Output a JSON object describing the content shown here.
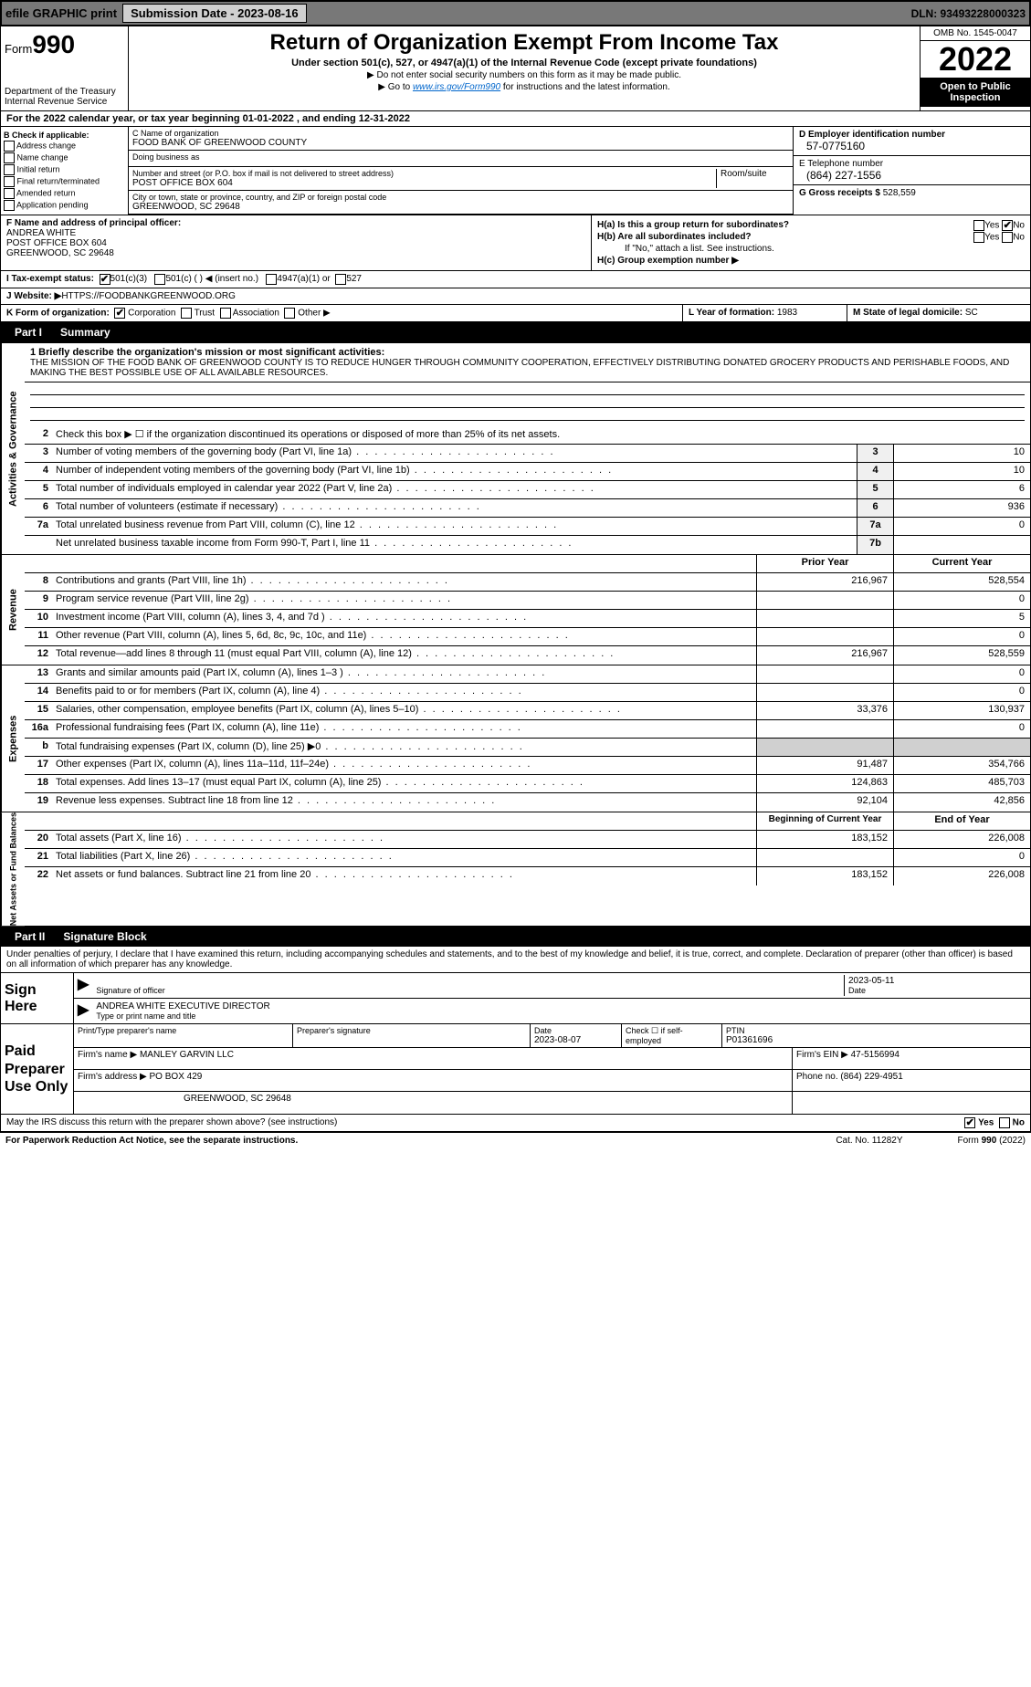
{
  "topbar": {
    "efile": "efile GRAPHIC print",
    "submission": "Submission Date - 2023-08-16",
    "dln": "DLN: 93493228000323"
  },
  "header": {
    "form_prefix": "Form",
    "form_num": "990",
    "dept": "Department of the Treasury",
    "irs": "Internal Revenue Service",
    "title": "Return of Organization Exempt From Income Tax",
    "subtitle": "Under section 501(c), 527, or 4947(a)(1) of the Internal Revenue Code (except private foundations)",
    "note1": "▶ Do not enter social security numbers on this form as it may be made public.",
    "note2": "▶ Go to www.irs.gov/Form990 for instructions and the latest information.",
    "omb": "OMB No. 1545-0047",
    "year": "2022",
    "open": "Open to Public Inspection"
  },
  "line_a": "For the 2022 calendar year, or tax year beginning 01-01-2022    , and ending 12-31-2022",
  "block_b": {
    "title": "B Check if applicable:",
    "items": [
      "Address change",
      "Name change",
      "Initial return",
      "Final return/terminated",
      "Amended return",
      "Application pending"
    ]
  },
  "block_c": {
    "name_lbl": "C Name of organization",
    "name": "FOOD BANK OF GREENWOOD COUNTY",
    "dba_lbl": "Doing business as",
    "dba": "",
    "addr_lbl": "Number and street (or P.O. box if mail is not delivered to street address)",
    "room_lbl": "Room/suite",
    "addr": "POST OFFICE BOX 604",
    "city_lbl": "City or town, state or province, country, and ZIP or foreign postal code",
    "city": "GREENWOOD, SC  29648"
  },
  "block_d": {
    "ein_lbl": "D Employer identification number",
    "ein": "57-0775160",
    "tel_lbl": "E Telephone number",
    "tel": "(864) 227-1556",
    "gross_lbl": "G Gross receipts $",
    "gross": "528,559"
  },
  "block_f": {
    "lbl": "F  Name and address of principal officer:",
    "name": "ANDREA WHITE",
    "addr1": "POST OFFICE BOX 604",
    "addr2": "GREENWOOD, SC  29648"
  },
  "block_h": {
    "ha": "H(a)  Is this a group return for subordinates?",
    "ha_yes": "Yes",
    "ha_no": "No",
    "hb": "H(b)  Are all subordinates included?",
    "hb_yes": "Yes",
    "hb_no": "No",
    "hb_note": "If \"No,\" attach a list. See instructions.",
    "hc": "H(c)  Group exemption number ▶"
  },
  "tax_status": {
    "lbl": "I   Tax-exempt status:",
    "c3": "501(c)(3)",
    "c": "501(c) (   ) ◀ (insert no.)",
    "a1": "4947(a)(1) or",
    "527": "527"
  },
  "website": {
    "lbl": "J   Website: ▶",
    "val": " HTTPS://FOODBANKGREENWOOD.ORG"
  },
  "line_k": "K Form of organization:",
  "k_items": [
    "Corporation",
    "Trust",
    "Association",
    "Other ▶"
  ],
  "line_l": {
    "lbl": "L Year of formation:",
    "val": "1983"
  },
  "line_m": {
    "lbl": "M State of legal domicile:",
    "val": "SC"
  },
  "part1": {
    "tab": "Part I",
    "title": "Summary"
  },
  "mission_lbl": "1  Briefly describe the organization's mission or most significant activities:",
  "mission": "THE MISSION OF THE FOOD BANK OF GREENWOOD COUNTY IS TO REDUCE HUNGER THROUGH COMMUNITY COOPERATION, EFFECTIVELY DISTRIBUTING DONATED GROCERY PRODUCTS AND PERISHABLE FOODS, AND MAKING THE BEST POSSIBLE USE OF ALL AVAILABLE RESOURCES.",
  "sections": {
    "gov": {
      "label": "Activities & Governance",
      "rows": [
        {
          "n": "2",
          "t": "Check this box ▶ ☐  if the organization discontinued its operations or disposed of more than 25% of its net assets."
        },
        {
          "n": "3",
          "t": "Number of voting members of the governing body (Part VI, line 1a)",
          "box": "3",
          "v": "10"
        },
        {
          "n": "4",
          "t": "Number of independent voting members of the governing body (Part VI, line 1b)",
          "box": "4",
          "v": "10"
        },
        {
          "n": "5",
          "t": "Total number of individuals employed in calendar year 2022 (Part V, line 2a)",
          "box": "5",
          "v": "6"
        },
        {
          "n": "6",
          "t": "Total number of volunteers (estimate if necessary)",
          "box": "6",
          "v": "936"
        },
        {
          "n": "7a",
          "t": "Total unrelated business revenue from Part VIII, column (C), line 12",
          "box": "7a",
          "v": "0"
        },
        {
          "n": "",
          "t": "Net unrelated business taxable income from Form 990-T, Part I, line 11",
          "box": "7b",
          "v": ""
        }
      ]
    },
    "rev": {
      "label": "Revenue",
      "header_prior": "Prior Year",
      "header_curr": "Current Year",
      "rows": [
        {
          "n": "8",
          "t": "Contributions and grants (Part VIII, line 1h)",
          "p": "216,967",
          "c": "528,554"
        },
        {
          "n": "9",
          "t": "Program service revenue (Part VIII, line 2g)",
          "p": "",
          "c": "0"
        },
        {
          "n": "10",
          "t": "Investment income (Part VIII, column (A), lines 3, 4, and 7d )",
          "p": "",
          "c": "5"
        },
        {
          "n": "11",
          "t": "Other revenue (Part VIII, column (A), lines 5, 6d, 8c, 9c, 10c, and 11e)",
          "p": "",
          "c": "0"
        },
        {
          "n": "12",
          "t": "Total revenue—add lines 8 through 11 (must equal Part VIII, column (A), line 12)",
          "p": "216,967",
          "c": "528,559"
        }
      ]
    },
    "exp": {
      "label": "Expenses",
      "rows": [
        {
          "n": "13",
          "t": "Grants and similar amounts paid (Part IX, column (A), lines 1–3 )",
          "p": "",
          "c": "0"
        },
        {
          "n": "14",
          "t": "Benefits paid to or for members (Part IX, column (A), line 4)",
          "p": "",
          "c": "0"
        },
        {
          "n": "15",
          "t": "Salaries, other compensation, employee benefits (Part IX, column (A), lines 5–10)",
          "p": "33,376",
          "c": "130,937"
        },
        {
          "n": "16a",
          "t": "Professional fundraising fees (Part IX, column (A), line 11e)",
          "p": "",
          "c": "0"
        },
        {
          "n": "b",
          "t": "Total fundraising expenses (Part IX, column (D), line 25) ▶0",
          "p": "SHADE",
          "c": "SHADE"
        },
        {
          "n": "17",
          "t": "Other expenses (Part IX, column (A), lines 11a–11d, 11f–24e)",
          "p": "91,487",
          "c": "354,766"
        },
        {
          "n": "18",
          "t": "Total expenses. Add lines 13–17 (must equal Part IX, column (A), line 25)",
          "p": "124,863",
          "c": "485,703"
        },
        {
          "n": "19",
          "t": "Revenue less expenses. Subtract line 18 from line 12",
          "p": "92,104",
          "c": "42,856"
        }
      ]
    },
    "net": {
      "label": "Net Assets or Fund Balances",
      "header_prior": "Beginning of Current Year",
      "header_curr": "End of Year",
      "rows": [
        {
          "n": "20",
          "t": "Total assets (Part X, line 16)",
          "p": "183,152",
          "c": "226,008"
        },
        {
          "n": "21",
          "t": "Total liabilities (Part X, line 26)",
          "p": "",
          "c": "0"
        },
        {
          "n": "22",
          "t": "Net assets or fund balances. Subtract line 21 from line 20",
          "p": "183,152",
          "c": "226,008"
        }
      ]
    }
  },
  "part2": {
    "tab": "Part II",
    "title": "Signature Block"
  },
  "sig": {
    "declar": "Under penalties of perjury, I declare that I have examined this return, including accompanying schedules and statements, and to the best of my knowledge and belief, it is true, correct, and complete. Declaration of preparer (other than officer) is based on all information of which preparer has any knowledge.",
    "sign_here": "Sign Here",
    "sig_officer": "Signature of officer",
    "date": "2023-05-11",
    "date_lbl": "Date",
    "name": "ANDREA WHITE  EXECUTIVE DIRECTOR",
    "name_lbl": "Type or print name and title"
  },
  "prep": {
    "title": "Paid Preparer Use Only",
    "h1": "Print/Type preparer's name",
    "h2": "Preparer's signature",
    "h3": "Date",
    "h4": "Check ☐ if self-employed",
    "h5": "PTIN",
    "date": "2023-08-07",
    "ptin": "P01361696",
    "firm_lbl": "Firm's name    ▶",
    "firm": "MANLEY GARVIN LLC",
    "ein_lbl": "Firm's EIN ▶",
    "ein": "47-5156994",
    "addr_lbl": "Firm's address ▶",
    "addr1": "PO BOX 429",
    "addr2": "GREENWOOD, SC  29648",
    "phone_lbl": "Phone no.",
    "phone": "(864) 229-4951"
  },
  "discuss": {
    "q": "May the IRS discuss this return with the preparer shown above? (see instructions)",
    "yes": "Yes",
    "no": "No"
  },
  "footer": {
    "left": "For Paperwork Reduction Act Notice, see the separate instructions.",
    "mid": "Cat. No. 11282Y",
    "right": "Form 990 (2022)"
  }
}
